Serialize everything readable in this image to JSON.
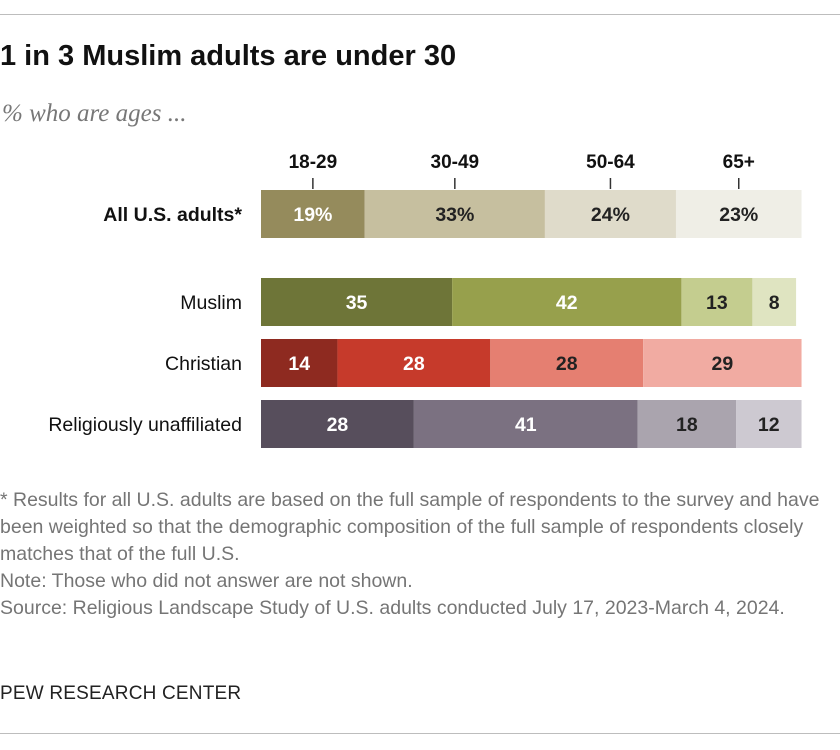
{
  "title": "1 in 3 Muslim adults are under 30",
  "subtitle": "% who are ages ...",
  "notes": {
    "asterisk": "* Results for all U.S. adults are based on the full sample of respondents to the survey and have been weighted so that the demographic composition of the full sample of respondents closely matches that of the full U.S.",
    "note": "Note: Those who did not answer are not shown.",
    "source": "Source: Religious Landscape Study of U.S. adults conducted July 17, 2023-March 4, 2024."
  },
  "brand": "PEW RESEARCH CENTER",
  "chart_data": {
    "type": "bar",
    "orientation": "horizontal-stacked",
    "title": "1 in 3 Muslim adults are under 30",
    "subtitle": "% who are ages ...",
    "categories": [
      "18-29",
      "30-49",
      "50-64",
      "65+"
    ],
    "xlim": [
      0,
      100
    ],
    "grid": false,
    "rows": [
      {
        "label": "All U.S. adults*",
        "label_bold": true,
        "values": [
          19,
          33,
          24,
          23
        ],
        "data_labels": [
          "19%",
          "33%",
          "24%",
          "23%"
        ],
        "colors": [
          "#958b5c",
          "#c6bf9f",
          "#dfdbca",
          "#efeee6"
        ],
        "text_colors": [
          "#ffffff",
          "#222222",
          "#222222",
          "#222222"
        ]
      },
      {
        "label": "Muslim",
        "label_bold": false,
        "values": [
          35,
          42,
          13,
          8
        ],
        "data_labels": [
          "35",
          "42",
          "13",
          "8"
        ],
        "colors": [
          "#6e7538",
          "#97a04c",
          "#c4cd8f",
          "#dfe4c1"
        ],
        "text_colors": [
          "#ffffff",
          "#ffffff",
          "#222222",
          "#222222"
        ]
      },
      {
        "label": "Christian",
        "label_bold": false,
        "values": [
          14,
          28,
          28,
          29
        ],
        "data_labels": [
          "14",
          "28",
          "28",
          "29"
        ],
        "colors": [
          "#8e2a20",
          "#c63a2b",
          "#e57f71",
          "#f1aba2"
        ],
        "text_colors": [
          "#ffffff",
          "#ffffff",
          "#222222",
          "#222222"
        ]
      },
      {
        "label": "Religiously unaffiliated",
        "label_bold": false,
        "values": [
          28,
          41,
          18,
          12
        ],
        "data_labels": [
          "28",
          "41",
          "18",
          "12"
        ],
        "colors": [
          "#574e5c",
          "#7b7181",
          "#aaa4ae",
          "#cdc9d1"
        ],
        "text_colors": [
          "#ffffff",
          "#ffffff",
          "#222222",
          "#222222"
        ]
      }
    ]
  }
}
